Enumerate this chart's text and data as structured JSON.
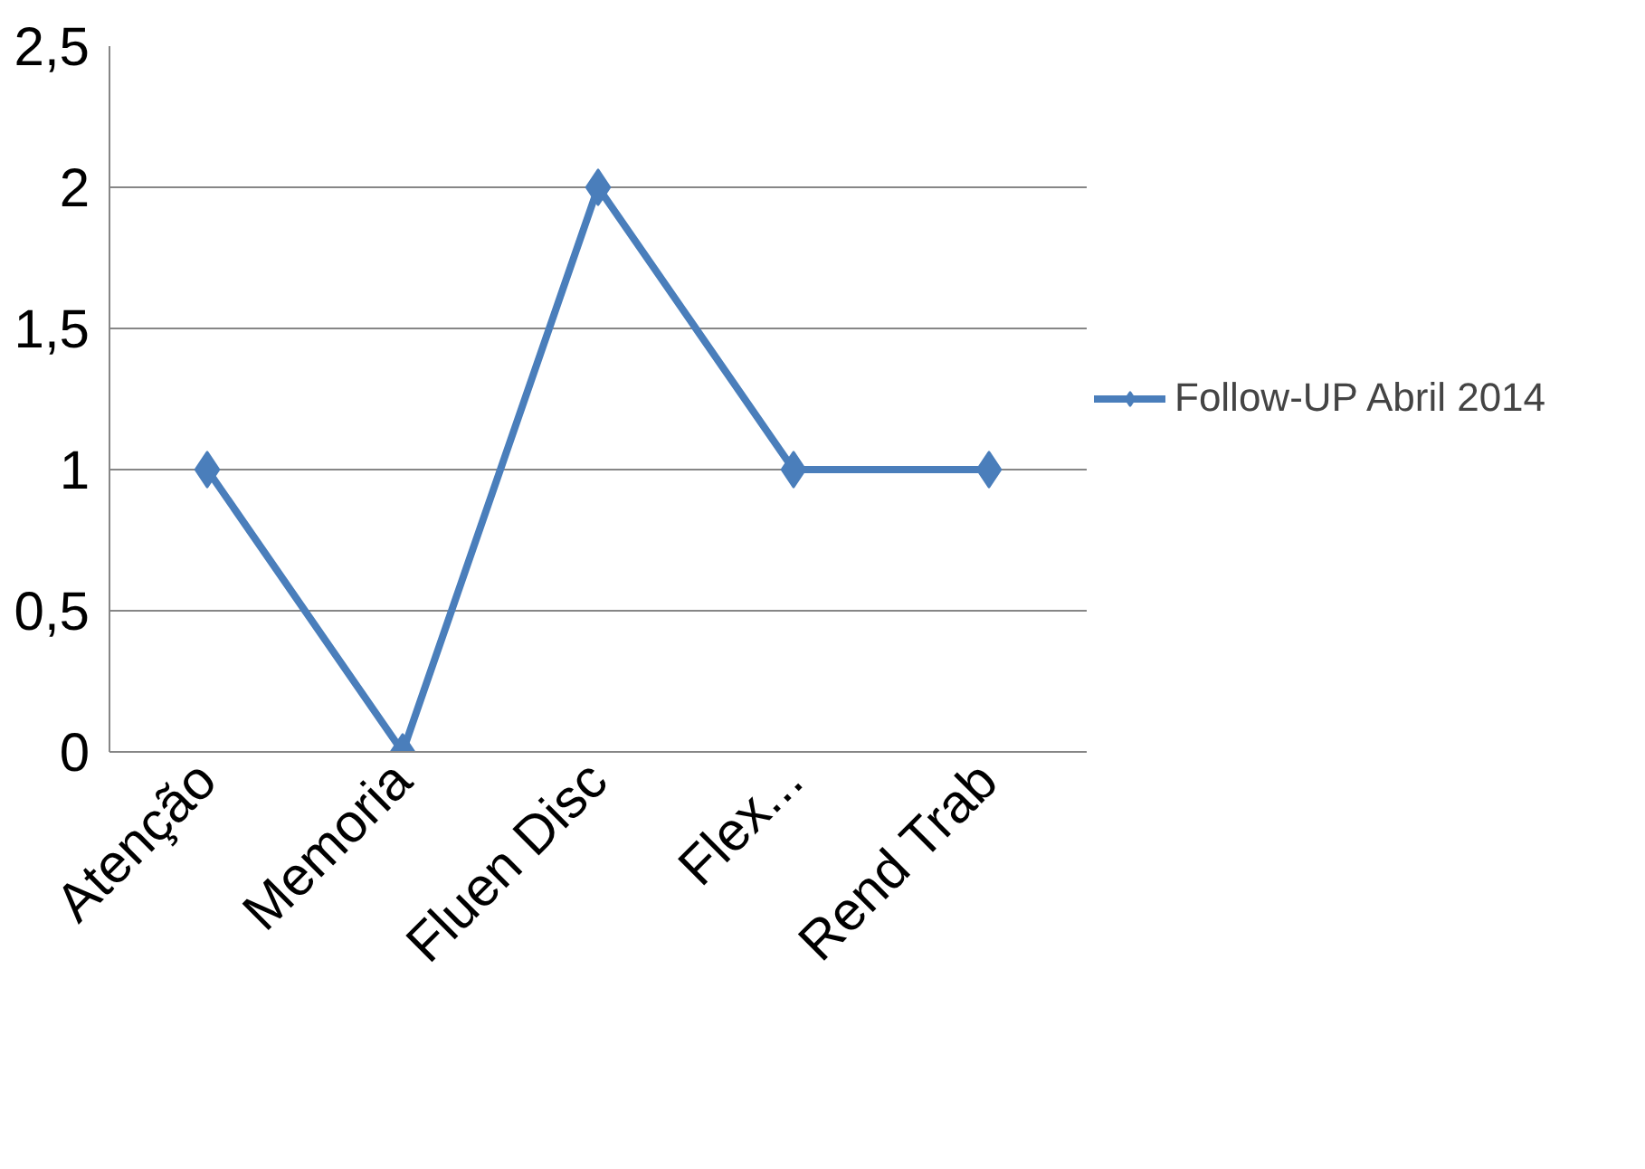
{
  "chart_data": {
    "type": "line",
    "categories": [
      "Atenção",
      "Memoria",
      "Fluen Disc",
      "Flex...",
      "Rend Trab"
    ],
    "series": [
      {
        "name": "Follow-UP Abril 2014",
        "color": "#4a7ebb",
        "values": [
          1,
          0,
          2,
          1,
          1
        ]
      }
    ],
    "ylim": [
      0,
      2.5
    ],
    "yticks": [
      0,
      {
        "value": 0.5,
        "label": "0,5"
      },
      1,
      {
        "value": 1.5,
        "label": "1,5"
      },
      2,
      {
        "value": 2.5,
        "label": "2,5"
      }
    ],
    "grid": "y",
    "legend": "right",
    "marker": "diamond",
    "line_style": "solid"
  }
}
